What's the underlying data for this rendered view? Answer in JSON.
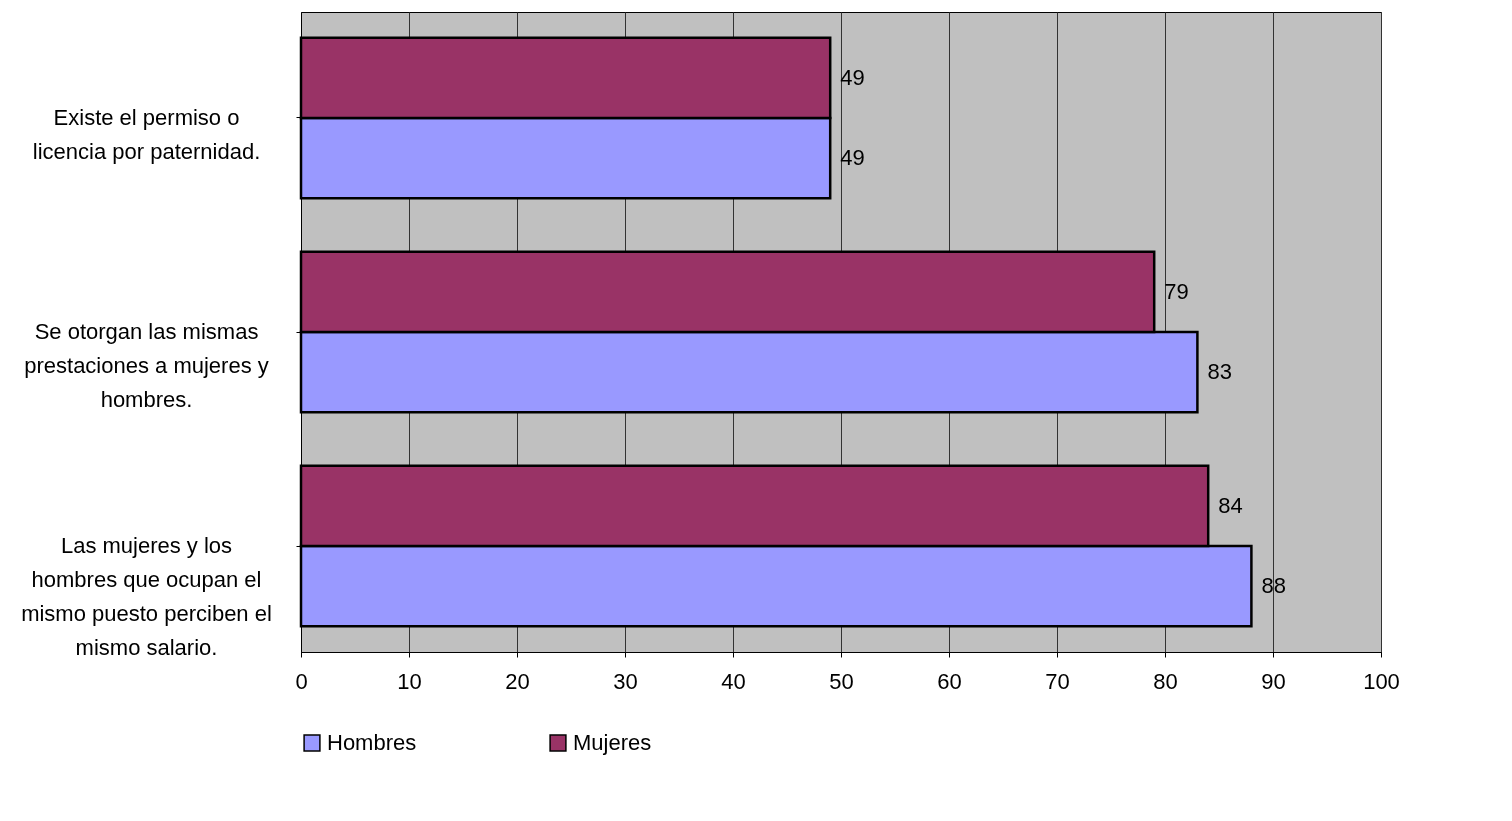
{
  "chart_data": {
    "type": "bar",
    "orientation": "horizontal",
    "categories": [
      "Existe el permiso o licencia por paternidad.",
      "Se otorgan las mismas prestaciones a mujeres y hombres.",
      "Las mujeres y los hombres que ocupan el mismo puesto perciben el mismo salario."
    ],
    "series": [
      {
        "name": "Hombres",
        "color": "#9999ff",
        "values": [
          49,
          83,
          88
        ]
      },
      {
        "name": "Mujeres",
        "color": "#993366",
        "values": [
          49,
          79,
          84
        ]
      }
    ],
    "xlim": [
      0,
      100
    ],
    "xticks": [
      0,
      10,
      20,
      30,
      40,
      50,
      60,
      70,
      80,
      90,
      100
    ],
    "grid": "x",
    "legend": "bottom",
    "data_labels": true
  }
}
